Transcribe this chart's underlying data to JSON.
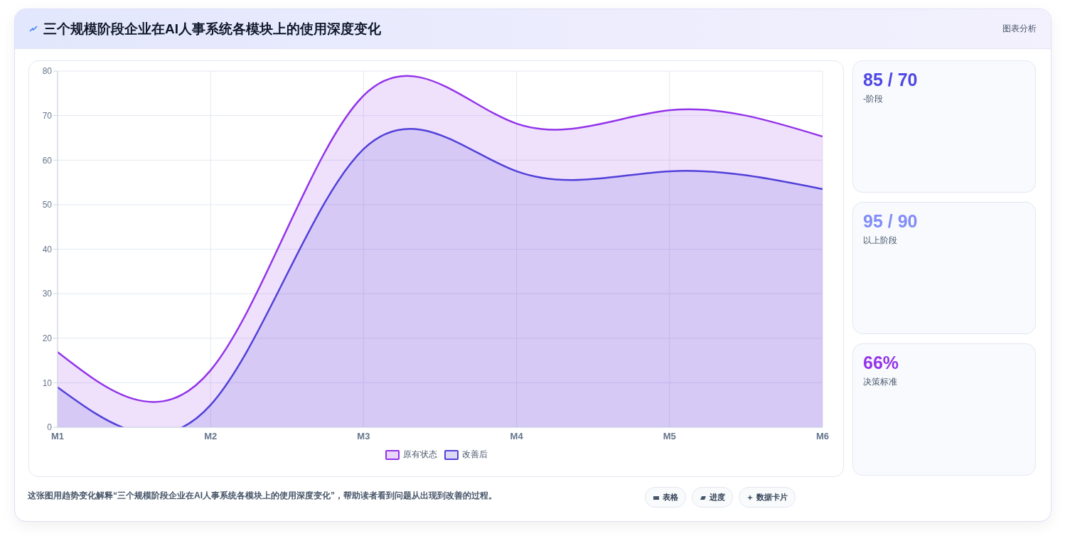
{
  "chart_data": {
    "type": "area",
    "title": "三个规模阶段企业在AI人事系统各模块上的使用深度变化",
    "categories": [
      "M1",
      "M2",
      "M3",
      "M4",
      "M5",
      "M6"
    ],
    "series": [
      {
        "name": "原有状态",
        "color": "#9333ea",
        "values": [
          16.9,
          12.8,
          74.5,
          68.2,
          71.2,
          65.3
        ]
      },
      {
        "name": "改善后",
        "color": "#5140d9",
        "values": [
          9,
          5,
          62.5,
          57.5,
          57.5,
          53.5
        ]
      }
    ],
    "ylim": [
      0,
      80
    ],
    "yticks": [
      0,
      10,
      20,
      30,
      40,
      50,
      60,
      70,
      80
    ],
    "grid": true,
    "legend": "bottom",
    "marker": "none",
    "line_style": "solid",
    "annotations": [
      "图表分析",
      "85 / 70",
      "-阶段",
      "95 / 90",
      "以上阶段",
      "66%",
      "决策标准",
      "这张图用趋势变化解释“三个规模阶段企业在AI人事系统各模块上的使用深度变化”，帮助读者看到问题从出现到改善的过程。",
      "表格",
      "进度",
      "数据卡片"
    ]
  }
}
